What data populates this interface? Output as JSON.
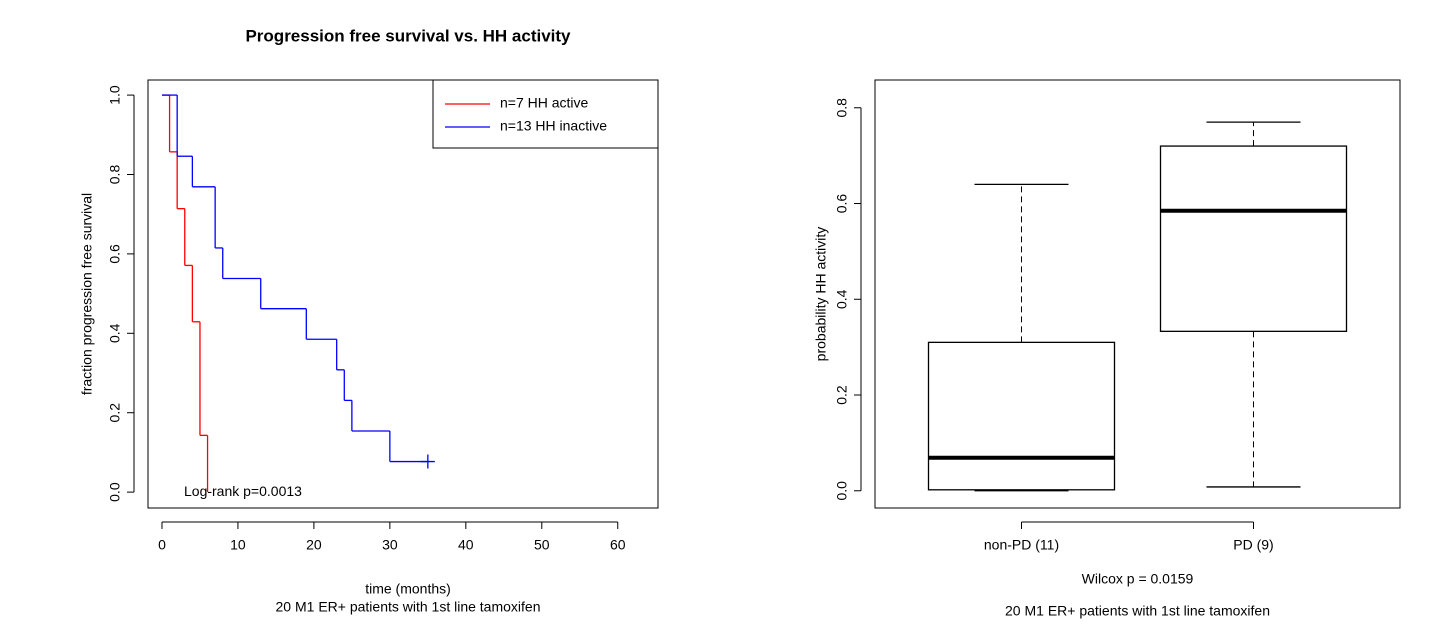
{
  "chart_data": [
    {
      "type": "step",
      "title": "Progression free survival vs. HH activity",
      "xlabel": "time (months)",
      "subtitle": "20 M1 ER+ patients with 1st line tamoxifen",
      "ylabel": "fraction progression free survival",
      "annotation": "Log-rank p=0.0013",
      "legend": "topright",
      "xlim": [
        -1.84,
        65.3
      ],
      "xticks": [
        0,
        10,
        20,
        30,
        40,
        50,
        60
      ],
      "ylim": [
        -0.04,
        1.038
      ],
      "yticks": [
        {
          "value": 0,
          "label": "0.0"
        },
        0.2,
        0.4,
        0.6,
        0.8,
        {
          "value": 1,
          "label": "1.0"
        }
      ],
      "series": [
        {
          "name": "n=7 HH active",
          "color": "#ff0000",
          "x": [
            0,
            1,
            2,
            3,
            4,
            5,
            6
          ],
          "values": [
            1,
            0.857,
            0.714,
            0.571,
            0.429,
            0.143,
            0
          ]
        },
        {
          "name": "n=13 HH inactive",
          "color": "#0000ff",
          "x": [
            0,
            2,
            4,
            7,
            8,
            13,
            19,
            23,
            24,
            25,
            30,
            35
          ],
          "values": [
            1,
            0.846,
            0.769,
            0.615,
            0.538,
            0.462,
            0.385,
            0.308,
            0.231,
            0.154,
            0.077,
            0.077
          ],
          "censored": [
            35
          ]
        }
      ]
    },
    {
      "type": "box",
      "ylabel": "probability HH activity",
      "xlabel": "Wilcox p = 0.0159",
      "subtitle": "20 M1 ER+ patients with 1st line tamoxifen",
      "categories": [
        "non-PD (11)",
        "PD (9)"
      ],
      "min": [
        0,
        0.008
      ],
      "q1": [
        0.002,
        0.333
      ],
      "median": [
        0.069,
        0.585
      ],
      "q3": [
        0.31,
        0.72
      ],
      "max": [
        0.64,
        0.77
      ],
      "ylim": [
        -0.036,
        0.858
      ],
      "yticks": [
        {
          "value": 0,
          "label": "0.0"
        },
        0.2,
        0.4,
        0.6,
        0.8
      ]
    }
  ]
}
